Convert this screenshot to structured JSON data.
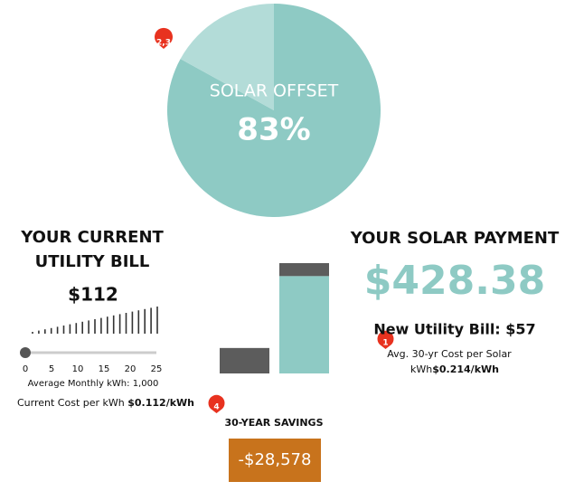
{
  "solar_offset": {
    "type": "pie",
    "title": "SOLAR OFFSET",
    "value": 83,
    "value_label": "83%",
    "colors": [
      "#8ecac4",
      "#b3dcd8"
    ]
  },
  "badges": [
    "2,3",
    "1",
    "4"
  ],
  "current_bill": {
    "title_lines": [
      "YOUR CURRENT",
      "UTILITY BILL"
    ],
    "amount": "$112",
    "slider_ticks": [
      0,
      5,
      10,
      15,
      20,
      25
    ],
    "slider_value": 0,
    "monthly_kwh": "Average Monthly kWh: 1,000",
    "cost_label": "Current Cost per kWh",
    "cost_value": "$0.112/kWh"
  },
  "comparison": {
    "type": "bar",
    "current": {
      "color": "#5c5c5c",
      "values": [
        112
      ]
    },
    "solar": {
      "colors": [
        "#8ecac4",
        "#5c5c5c"
      ],
      "values": [
        428.38,
        57
      ]
    }
  },
  "solar_payment": {
    "title": "YOUR SOLAR PAYMENT",
    "amount": "$428.38",
    "new_bill": "New Utility Bill: $57",
    "avg_cost_lines": [
      "Avg. 30-yr Cost per Solar",
      "kWh"
    ],
    "avg_cost_value": "$0.214/kWh"
  },
  "savings": {
    "title": "30-YEAR SAVINGS",
    "amount": "-$28,578"
  }
}
